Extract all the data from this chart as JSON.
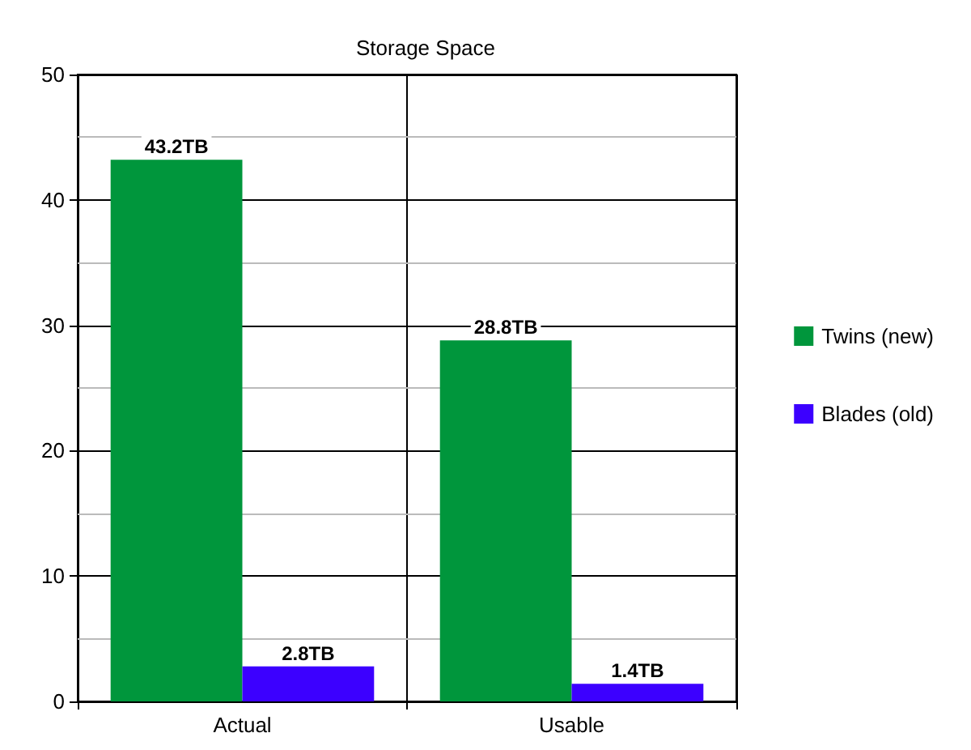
{
  "chart_data": {
    "type": "bar",
    "title": "Storage Space",
    "categories": [
      "Actual",
      "Usable"
    ],
    "series": [
      {
        "name": "Twins (new)",
        "color": "#00963c",
        "values": [
          43.2,
          28.8
        ],
        "value_labels": [
          "43.2TB",
          "28.8TB"
        ]
      },
      {
        "name": "Blades (old)",
        "color": "#3c00ff",
        "values": [
          2.8,
          1.4
        ],
        "value_labels": [
          "2.8TB",
          "1.4TB"
        ]
      }
    ],
    "ylim": [
      0,
      50
    ],
    "yticks": [
      0,
      {
        "value": 5,
        "label": null
      },
      10,
      {
        "value": 15,
        "label": null
      },
      20,
      {
        "value": 25,
        "label": null
      },
      30,
      {
        "value": 35,
        "label": null
      },
      40,
      {
        "value": 45,
        "label": null
      },
      50
    ],
    "grid": true,
    "legend": "right"
  }
}
